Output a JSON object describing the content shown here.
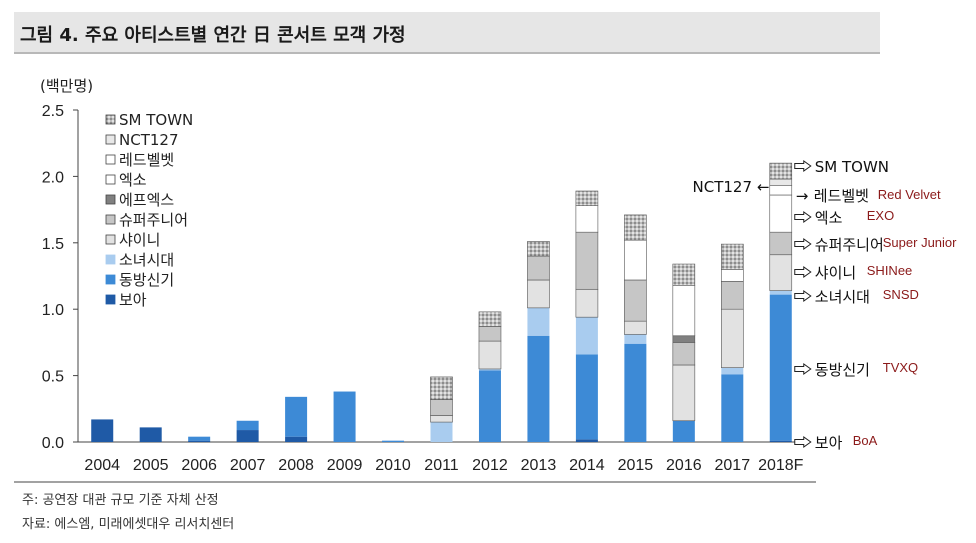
{
  "header": {
    "title": "그림 4. 주요 아티스트별 연간 日 콘서트 모객 가정"
  },
  "unit_label": "(백만명)",
  "notes": {
    "note": "주: 공연장 대관 규모 기준 자체 산정",
    "source": "자료: 에스엠, 미래에셋대우 리서치센터"
  },
  "colors": {
    "boa": "#1f5aa6",
    "tvxq": "#3d8ad6",
    "snsd": "#a9ccef",
    "shinee": "#e2e2e2",
    "superjunior": "#c6c6c6",
    "exo": "#ffffff",
    "fx": "#808080",
    "redvelvet": "#ffffff",
    "nct127": "#e8e8e8",
    "smtown": "#bdbdbd"
  },
  "chart_data": {
    "type": "bar",
    "stacked": true,
    "ylabel": "(백만명)",
    "ylim": [
      0,
      2.5
    ],
    "yticks": [
      "0.0",
      "0.5",
      "1.0",
      "1.5",
      "2.0",
      "2.5"
    ],
    "categories": [
      "2004",
      "2005",
      "2006",
      "2007",
      "2008",
      "2009",
      "2010",
      "2011",
      "2012",
      "2013",
      "2014",
      "2015",
      "2016",
      "2017",
      "2018F"
    ],
    "series": [
      {
        "key": "boa",
        "name": "보아",
        "en": "BoA",
        "values": [
          0.17,
          0.11,
          0.01,
          0.09,
          0.04,
          0,
          0,
          0,
          0,
          0,
          0.02,
          0,
          0,
          0,
          0.01
        ]
      },
      {
        "key": "tvxq",
        "name": "동방신기",
        "en": "TVXQ",
        "values": [
          0,
          0,
          0.03,
          0.07,
          0.3,
          0.38,
          0.01,
          0,
          0.54,
          0.8,
          0.64,
          0.74,
          0.16,
          0.51,
          1.1
        ]
      },
      {
        "key": "snsd",
        "name": "소녀시대",
        "en": "SNSD",
        "values": [
          0,
          0,
          0,
          0,
          0,
          0,
          0,
          0.15,
          0.01,
          0.21,
          0.28,
          0.07,
          0,
          0.05,
          0.03
        ]
      },
      {
        "key": "shinee",
        "name": "샤이니",
        "en": "SHINee",
        "values": [
          0,
          0,
          0,
          0,
          0,
          0,
          0,
          0.05,
          0.21,
          0.21,
          0.21,
          0.1,
          0.42,
          0.44,
          0.27
        ]
      },
      {
        "key": "superjunior",
        "name": "슈퍼주니어",
        "en": "Super Junior",
        "values": [
          0,
          0,
          0,
          0,
          0,
          0,
          0,
          0.12,
          0.11,
          0.18,
          0.43,
          0.31,
          0.17,
          0.21,
          0.17
        ]
      },
      {
        "key": "fx",
        "name": "에프엑스",
        "en": "",
        "values": [
          0,
          0,
          0,
          0,
          0,
          0,
          0,
          0,
          0,
          0,
          0,
          0,
          0.05,
          0,
          0
        ]
      },
      {
        "key": "exo",
        "name": "엑소",
        "en": "EXO",
        "values": [
          0,
          0,
          0,
          0,
          0,
          0,
          0,
          0,
          0,
          0,
          0.2,
          0.3,
          0.38,
          0.09,
          0.28
        ]
      },
      {
        "key": "redvelvet",
        "name": "레드벨벳",
        "en": "Red Velvet",
        "values": [
          0,
          0,
          0,
          0,
          0,
          0,
          0,
          0,
          0,
          0,
          0,
          0,
          0,
          0,
          0.07
        ]
      },
      {
        "key": "nct127",
        "name": "NCT127",
        "en": "",
        "values": [
          0,
          0,
          0,
          0,
          0,
          0,
          0,
          0,
          0,
          0,
          0,
          0,
          0,
          0,
          0.05
        ]
      },
      {
        "key": "smtown",
        "name": "SM TOWN",
        "en": "",
        "values": [
          0,
          0,
          0,
          0,
          0,
          0,
          0,
          0.17,
          0.11,
          0.11,
          0.11,
          0.19,
          0.16,
          0.19,
          0.12
        ]
      }
    ],
    "legend": [
      "SM TOWN",
      "NCT127",
      "레드벨벳",
      "엑소",
      "에프엑스",
      "슈퍼주니어",
      "샤이니",
      "소녀시대",
      "동방신기",
      "보아"
    ],
    "annotations_2018": [
      {
        "key": "smtown",
        "label": "SM TOWN",
        "en": ""
      },
      {
        "key": "nct127",
        "label": "NCT127",
        "en": ""
      },
      {
        "key": "redvelvet",
        "label": "레드벨벳",
        "en": "Red Velvet"
      },
      {
        "key": "exo",
        "label": "엑소",
        "en": "EXO"
      },
      {
        "key": "superjunior",
        "label": "슈퍼주니어",
        "en": "Super Junior"
      },
      {
        "key": "shinee",
        "label": "샤이니",
        "en": "SHINee"
      },
      {
        "key": "snsd",
        "label": "소녀시대",
        "en": "SNSD"
      },
      {
        "key": "tvxq",
        "label": "동방신기",
        "en": "TVXQ"
      },
      {
        "key": "boa",
        "label": "보아",
        "en": "BoA"
      }
    ]
  }
}
